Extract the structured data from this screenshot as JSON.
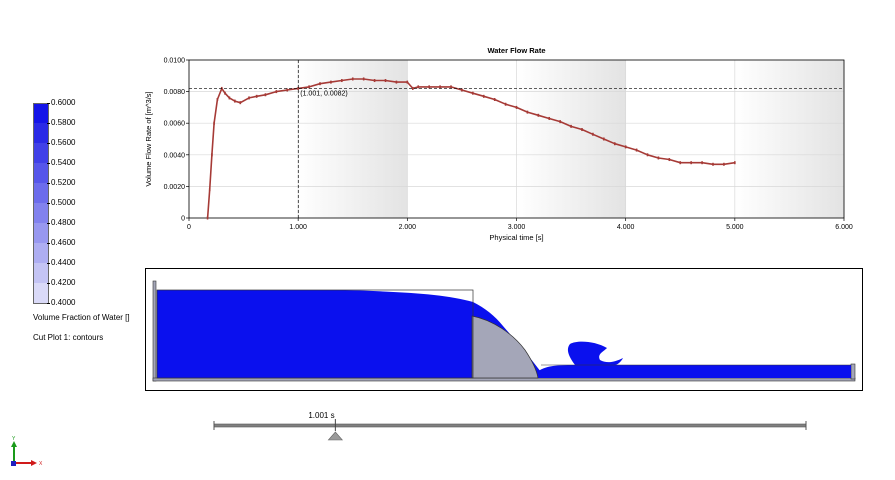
{
  "legend": {
    "values": [
      "0.6000",
      "0.5800",
      "0.5600",
      "0.5400",
      "0.5200",
      "0.5000",
      "0.4800",
      "0.4600",
      "0.4400",
      "0.4200",
      "0.4000"
    ],
    "colors": [
      "#1414e8",
      "#2a2ae6",
      "#4040e8",
      "#5656ea",
      "#6c6cec",
      "#8282ee",
      "#9898f0",
      "#aeaef2",
      "#c4c4f4",
      "#dadaf8",
      "#ffffff"
    ],
    "title": "Volume Fraction of Water []",
    "subtitle": "Cut Plot 1: contours"
  },
  "chart_data": {
    "type": "line",
    "title": "Water Flow Rate",
    "xlabel": "Physical time [s]",
    "ylabel": "Volume Flow Rate of  [m^3/s]",
    "xlim": [
      0,
      6
    ],
    "ylim": [
      0,
      0.01
    ],
    "x_ticks": [
      "0",
      "1.000",
      "2.000",
      "3.000",
      "4.000",
      "5.000",
      "6.000"
    ],
    "y_ticks": [
      "0",
      "0.0020",
      "0.0040",
      "0.0060",
      "0.0080",
      "0.0100"
    ],
    "series_color": "#a63a36",
    "series": [
      {
        "x": [
          0.17,
          0.19,
          0.21,
          0.23,
          0.26,
          0.3,
          0.33,
          0.37,
          0.42,
          0.47,
          0.55,
          0.62,
          0.7,
          0.8,
          0.9,
          1.0,
          1.1,
          1.2,
          1.3,
          1.4,
          1.5,
          1.6,
          1.7,
          1.8,
          1.9,
          2.0,
          2.05,
          2.1,
          2.2,
          2.3,
          2.4,
          2.5,
          2.6,
          2.7,
          2.8,
          2.9,
          3.0,
          3.1,
          3.2,
          3.3,
          3.4,
          3.5,
          3.6,
          3.7,
          3.8,
          3.9,
          4.0,
          4.1,
          4.2,
          4.3,
          4.4,
          4.5,
          4.6,
          4.7,
          4.8,
          4.9,
          5.0
        ],
        "y": [
          0.0,
          0.0018,
          0.004,
          0.006,
          0.0075,
          0.0082,
          0.0079,
          0.0076,
          0.0074,
          0.0073,
          0.0076,
          0.0077,
          0.0078,
          0.008,
          0.0081,
          0.0082,
          0.0083,
          0.0085,
          0.0086,
          0.0087,
          0.0088,
          0.0088,
          0.0087,
          0.0087,
          0.0086,
          0.0086,
          0.0082,
          0.0083,
          0.0083,
          0.0083,
          0.0083,
          0.0081,
          0.0079,
          0.0077,
          0.0075,
          0.0072,
          0.007,
          0.0067,
          0.0065,
          0.0063,
          0.0061,
          0.0058,
          0.0056,
          0.0053,
          0.005,
          0.0047,
          0.0045,
          0.0043,
          0.004,
          0.0038,
          0.0037,
          0.0035,
          0.0035,
          0.0035,
          0.0034,
          0.0034,
          0.0035
        ]
      }
    ],
    "cursor": {
      "x": 1.001,
      "y": 0.0082,
      "label": "(1.001, 0.0082)"
    },
    "shaded_bands": [
      [
        1,
        2
      ],
      [
        3,
        4
      ],
      [
        5,
        6
      ]
    ],
    "grid": true
  },
  "timeline": {
    "label": "1.001 s",
    "position_fraction": 0.205
  },
  "triad": {
    "y_label": "Y",
    "x_label": "X"
  },
  "colors": {
    "water": "#0a10ee",
    "solid": "#a4a6b8",
    "series": "#a63a36"
  }
}
